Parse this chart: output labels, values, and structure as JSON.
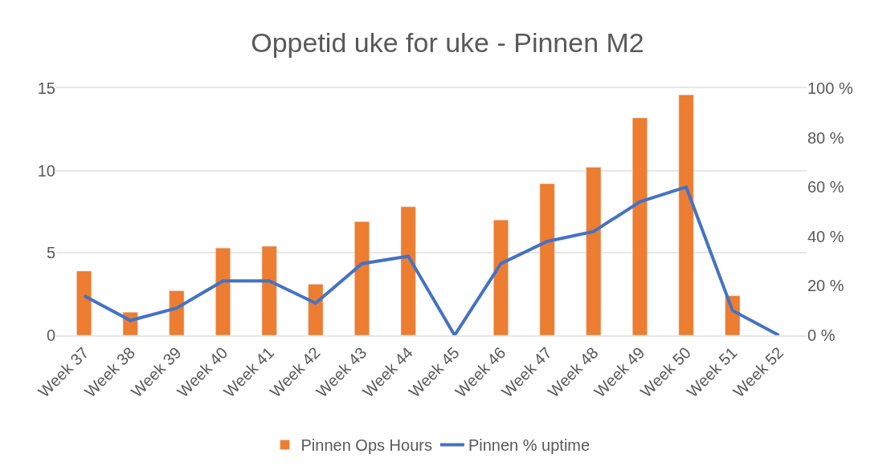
{
  "chart_data": {
    "type": "bar",
    "title": "Oppetid uke for uke - Pinnen M2",
    "categories": [
      "Week 37",
      "Week 38",
      "Week 39",
      "Week 40",
      "Week 41",
      "Week 42",
      "Week 43",
      "Week 44",
      "Week 45",
      "Week 46",
      "Week 47",
      "Week 48",
      "Week 49",
      "Week 50",
      "Week 51",
      "Week 52"
    ],
    "series": [
      {
        "name": "Pinnen Ops Hours",
        "color": "#ed7d31",
        "values": [
          3.9,
          1.4,
          2.7,
          5.3,
          5.4,
          3.1,
          6.9,
          7.8,
          null,
          7.0,
          9.2,
          10.2,
          13.2,
          14.6,
          2.4,
          null
        ]
      },
      {
        "name": "Pinnen % uptime",
        "type": "line",
        "axis": "y2",
        "color": "#4472c4",
        "values": [
          16,
          6,
          11,
          22,
          22,
          13,
          29,
          32,
          0,
          29,
          38,
          42,
          54,
          60,
          10,
          0
        ]
      }
    ],
    "ylim": [
      0,
      15
    ],
    "yticks": [
      0,
      5,
      10,
      15
    ],
    "y2lim": [
      0,
      100
    ],
    "y2ticks": [
      {
        "value": 0,
        "label": "0 %"
      },
      {
        "value": 20,
        "label": "20 %"
      },
      {
        "value": 40,
        "label": "40 %"
      },
      {
        "value": 60,
        "label": "60 %"
      },
      {
        "value": 80,
        "label": "80 %"
      },
      {
        "value": 100,
        "label": "100 %"
      }
    ],
    "grid": "y",
    "legend": "bottom",
    "marker": "none",
    "line_style": "solid"
  }
}
